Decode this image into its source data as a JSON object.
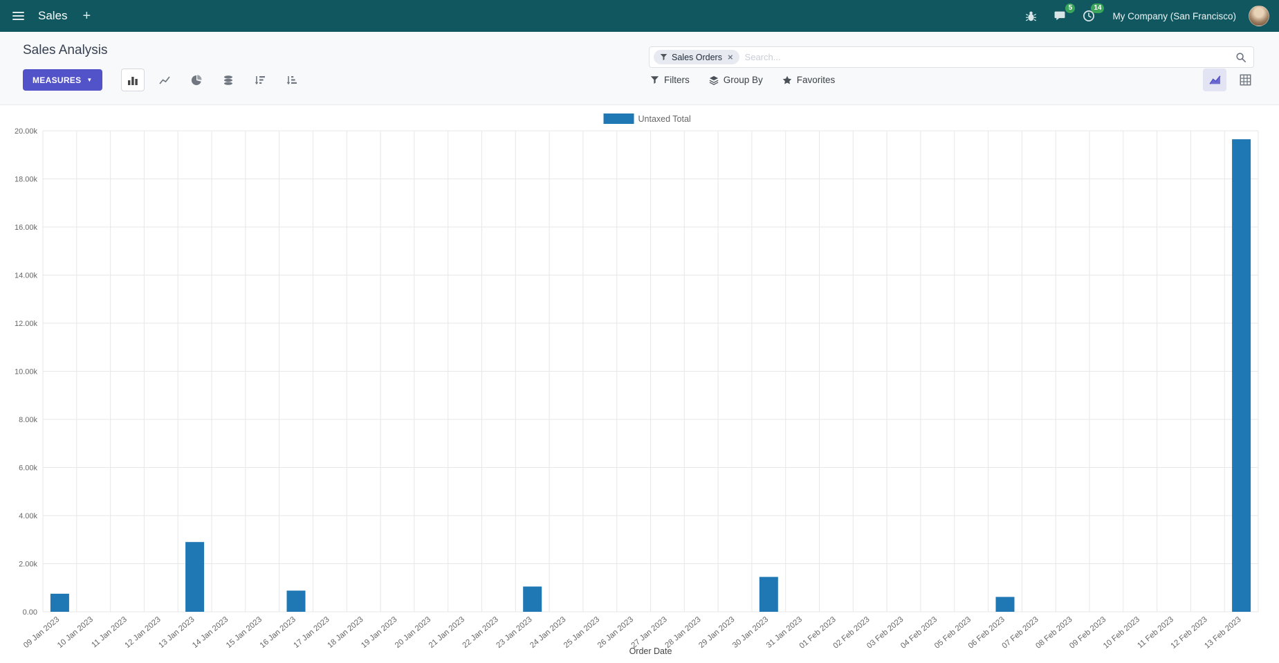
{
  "colors": {
    "navbar_bg": "#10575f",
    "accent": "#5353c9",
    "bar": "#1f77b4",
    "badge_green": "#3ba55c"
  },
  "icons": {
    "plus": "+",
    "caret": "▼",
    "close": "×"
  },
  "navbar": {
    "app_label": "Sales",
    "messages_badge": "5",
    "activities_badge": "14",
    "company": "My Company (San Francisco)"
  },
  "control_panel": {
    "title": "Sales Analysis",
    "measures_label": "MEASURES",
    "search": {
      "facet": "Sales Orders",
      "placeholder": "Search..."
    },
    "filters_label": "Filters",
    "group_by_label": "Group By",
    "favorites_label": "Favorites"
  },
  "chart_data": {
    "type": "bar",
    "title": "",
    "xlabel": "Order Date",
    "ylabel": "",
    "ylim": [
      0,
      20000
    ],
    "ytick_step": 2000,
    "ytick_labels": [
      "0.00",
      "2.00k",
      "4.00k",
      "6.00k",
      "8.00k",
      "10.00k",
      "12.00k",
      "14.00k",
      "16.00k",
      "18.00k",
      "20.00k"
    ],
    "grid": true,
    "legend_position": "top",
    "categories": [
      "09 Jan 2023",
      "10 Jan 2023",
      "11 Jan 2023",
      "12 Jan 2023",
      "13 Jan 2023",
      "14 Jan 2023",
      "15 Jan 2023",
      "16 Jan 2023",
      "17 Jan 2023",
      "18 Jan 2023",
      "19 Jan 2023",
      "20 Jan 2023",
      "21 Jan 2023",
      "22 Jan 2023",
      "23 Jan 2023",
      "24 Jan 2023",
      "25 Jan 2023",
      "26 Jan 2023",
      "27 Jan 2023",
      "28 Jan 2023",
      "29 Jan 2023",
      "30 Jan 2023",
      "31 Jan 2023",
      "01 Feb 2023",
      "02 Feb 2023",
      "03 Feb 2023",
      "04 Feb 2023",
      "05 Feb 2023",
      "06 Feb 2023",
      "07 Feb 2023",
      "08 Feb 2023",
      "09 Feb 2023",
      "10 Feb 2023",
      "11 Feb 2023",
      "12 Feb 2023",
      "13 Feb 2023"
    ],
    "series": [
      {
        "name": "Untaxed Total",
        "color": "#1f77b4",
        "values": [
          750,
          0,
          0,
          0,
          2900,
          0,
          0,
          880,
          0,
          0,
          0,
          0,
          0,
          0,
          1050,
          0,
          0,
          0,
          0,
          0,
          0,
          1450,
          0,
          0,
          0,
          0,
          0,
          0,
          620,
          0,
          0,
          0,
          0,
          0,
          0,
          19650
        ]
      }
    ]
  }
}
